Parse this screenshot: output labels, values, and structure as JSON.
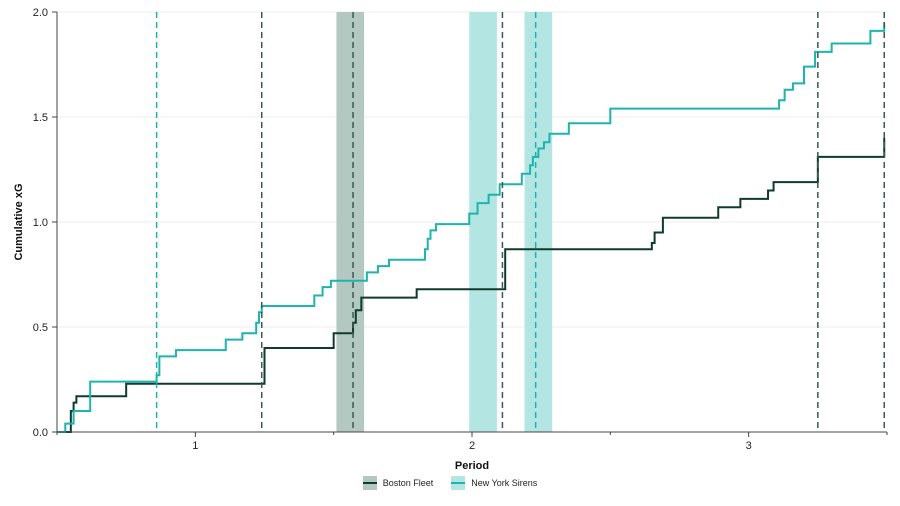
{
  "chart_data": {
    "type": "line",
    "title": "",
    "xlabel": "Period",
    "ylabel": "Cumulative xG",
    "xlim": [
      0.5,
      3.5
    ],
    "ylim": [
      0,
      2.0
    ],
    "x_ticks": [
      1,
      2,
      3
    ],
    "x_tick_labels": [
      "1",
      "2",
      "3"
    ],
    "y_ticks": [
      0.0,
      0.5,
      1.0,
      1.5,
      2.0
    ],
    "y_tick_labels": [
      "0.0",
      "0.5",
      "1.0",
      "1.5",
      "2.0"
    ],
    "grid": "horizontal",
    "legend_position": "bottom-center",
    "colors": {
      "Boston Fleet": "#0e3b2e",
      "New York Sirens": "#1fb3ad"
    },
    "series": [
      {
        "name": "Boston Fleet",
        "step": true,
        "points": [
          [
            0.5,
            0.0
          ],
          [
            0.55,
            0.1
          ],
          [
            0.56,
            0.14
          ],
          [
            0.57,
            0.17
          ],
          [
            0.75,
            0.23
          ],
          [
            1.25,
            0.4
          ],
          [
            1.5,
            0.47
          ],
          [
            1.57,
            0.52
          ],
          [
            1.58,
            0.58
          ],
          [
            1.6,
            0.64
          ],
          [
            1.8,
            0.68
          ],
          [
            2.12,
            0.87
          ],
          [
            2.65,
            0.9
          ],
          [
            2.66,
            0.95
          ],
          [
            2.69,
            1.02
          ],
          [
            2.89,
            1.07
          ],
          [
            2.97,
            1.11
          ],
          [
            3.07,
            1.15
          ],
          [
            3.09,
            1.19
          ],
          [
            3.25,
            1.31
          ],
          [
            3.49,
            1.4
          ]
        ]
      },
      {
        "name": "New York Sirens",
        "step": true,
        "points": [
          [
            0.5,
            0.0
          ],
          [
            0.53,
            0.04
          ],
          [
            0.56,
            0.1
          ],
          [
            0.62,
            0.24
          ],
          [
            0.86,
            0.27
          ],
          [
            0.87,
            0.36
          ],
          [
            0.93,
            0.39
          ],
          [
            1.11,
            0.44
          ],
          [
            1.17,
            0.47
          ],
          [
            1.22,
            0.52
          ],
          [
            1.23,
            0.57
          ],
          [
            1.24,
            0.6
          ],
          [
            1.43,
            0.65
          ],
          [
            1.46,
            0.69
          ],
          [
            1.49,
            0.72
          ],
          [
            1.62,
            0.76
          ],
          [
            1.66,
            0.79
          ],
          [
            1.7,
            0.82
          ],
          [
            1.83,
            0.87
          ],
          [
            1.84,
            0.92
          ],
          [
            1.85,
            0.96
          ],
          [
            1.87,
            0.99
          ],
          [
            1.99,
            1.04
          ],
          [
            2.02,
            1.09
          ],
          [
            2.06,
            1.13
          ],
          [
            2.1,
            1.18
          ],
          [
            2.18,
            1.23
          ],
          [
            2.21,
            1.27
          ],
          [
            2.22,
            1.31
          ],
          [
            2.24,
            1.35
          ],
          [
            2.26,
            1.38
          ],
          [
            2.28,
            1.42
          ],
          [
            2.35,
            1.47
          ],
          [
            2.5,
            1.54
          ],
          [
            3.11,
            1.58
          ],
          [
            3.13,
            1.63
          ],
          [
            3.16,
            1.66
          ],
          [
            3.2,
            1.74
          ],
          [
            3.24,
            1.81
          ],
          [
            3.3,
            1.85
          ],
          [
            3.44,
            1.91
          ],
          [
            3.49,
            1.95
          ]
        ]
      }
    ],
    "goal_lines": [
      {
        "team": "New York Sirens",
        "x": 0.86
      },
      {
        "team": "Boston Fleet",
        "x": 1.24
      },
      {
        "team": "Boston Fleet",
        "x": 1.57
      },
      {
        "team": "Boston Fleet",
        "x": 2.11
      },
      {
        "team": "New York Sirens",
        "x": 2.23
      },
      {
        "team": "Boston Fleet",
        "x": 3.25
      },
      {
        "team": "Boston Fleet",
        "x": 3.49
      }
    ],
    "shaded_bands": [
      {
        "team": "Boston Fleet",
        "x0": 1.51,
        "x1": 1.61
      },
      {
        "team": "New York Sirens",
        "x0": 1.99,
        "x1": 2.09
      },
      {
        "team": "New York Sirens",
        "x0": 2.19,
        "x1": 2.29
      }
    ]
  }
}
